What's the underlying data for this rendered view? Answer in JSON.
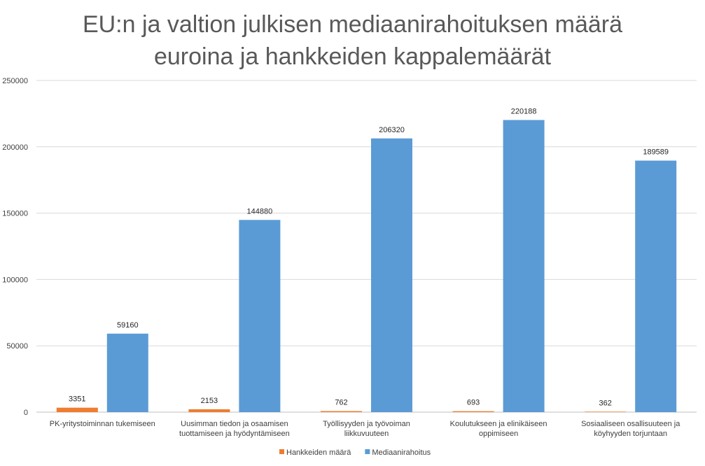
{
  "chart_data": {
    "type": "bar",
    "title_lines": [
      "EU:n ja valtion julkisen mediaanirahoituksen määrä",
      "euroina ja hankkeiden kappalemäärät"
    ],
    "categories": [
      [
        "PK-yritystoiminnan tukemiseen"
      ],
      [
        "Uusimman tiedon ja osaamisen",
        "tuottamiseen ja hyödyntämiseen"
      ],
      [
        "Työllisyyden ja työvoiman",
        "liikkuvuuteen"
      ],
      [
        "Koulutukseen ja elinikäiseen",
        "oppimiseen"
      ],
      [
        "Sosiaaliseen osallisuuteen ja",
        "köyhyyden torjuntaan"
      ]
    ],
    "series": [
      {
        "name": "Hankkeiden määrä",
        "color": "#ED7D31",
        "values": [
          3351,
          2153,
          762,
          693,
          362
        ]
      },
      {
        "name": "Mediaanirahoitus",
        "color": "#5B9BD5",
        "values": [
          59160,
          144880,
          206320,
          220188,
          189589
        ]
      }
    ],
    "y_ticks": [
      "0",
      "50000",
      "100000",
      "150000",
      "200000",
      "250000"
    ],
    "ylim": [
      0,
      250000
    ],
    "grid": true,
    "legend_position": "bottom"
  }
}
